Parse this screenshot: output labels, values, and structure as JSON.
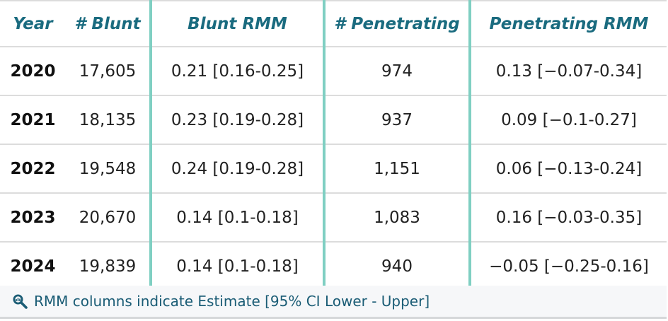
{
  "table": {
    "headers": [
      "Year",
      "# Blunt",
      "Blunt RMM",
      "# Penetrating",
      "Penetrating RMM"
    ],
    "rows": [
      [
        "2020",
        "17,605",
        "0.21 [0.16-0.25]",
        "974",
        "0.13 [−0.07-0.34]"
      ],
      [
        "2021",
        "18,135",
        "0.23 [0.19-0.28]",
        "937",
        "0.09 [−0.1-0.27]"
      ],
      [
        "2022",
        "19,548",
        "0.24 [0.19-0.28]",
        "1,151",
        "0.06 [−0.13-0.24]"
      ],
      [
        "2023",
        "20,670",
        "0.14 [0.1-0.18]",
        "1,083",
        "0.16 [−0.03-0.35]"
      ],
      [
        "2024",
        "19,839",
        "0.14 [0.1-0.18]",
        "940",
        "−0.05 [−0.25-0.16]"
      ]
    ]
  },
  "footer": {
    "icon": "magnifier-icon",
    "note": "RMM columns indicate Estimate [95% CI Lower - Upper]"
  },
  "colors": {
    "header_text": "#1a6b7f",
    "divider": "#7fcfc2",
    "footer_text": "#1a5c75"
  }
}
